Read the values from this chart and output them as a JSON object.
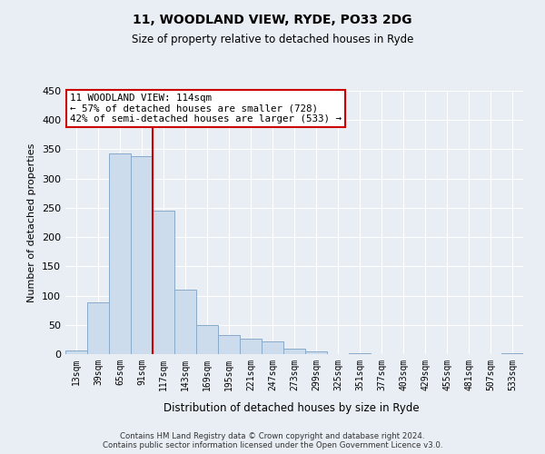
{
  "title": "11, WOODLAND VIEW, RYDE, PO33 2DG",
  "subtitle": "Size of property relative to detached houses in Ryde",
  "bar_color": "#ccdcec",
  "bar_edge_color": "#7aaan0",
  "categories": [
    "13sqm",
    "39sqm",
    "65sqm",
    "91sqm",
    "117sqm",
    "143sqm",
    "169sqm",
    "195sqm",
    "221sqm",
    "247sqm",
    "273sqm",
    "299sqm",
    "325sqm",
    "351sqm",
    "377sqm",
    "403sqm",
    "429sqm",
    "455sqm",
    "481sqm",
    "507sqm",
    "533sqm"
  ],
  "values": [
    6,
    89,
    343,
    338,
    245,
    110,
    49,
    32,
    27,
    22,
    10,
    5,
    0,
    1,
    0,
    0,
    0,
    0,
    0,
    0,
    1
  ],
  "ylim": [
    0,
    450
  ],
  "yticks": [
    0,
    50,
    100,
    150,
    200,
    250,
    300,
    350,
    400,
    450
  ],
  "ylabel": "Number of detached properties",
  "xlabel": "Distribution of detached houses by size in Ryde",
  "vline_color": "#cc0000",
  "vline_x": 3.5,
  "annotation_title": "11 WOODLAND VIEW: 114sqm",
  "annotation_line1": "← 57% of detached houses are smaller (728)",
  "annotation_line2": "42% of semi-detached houses are larger (533) →",
  "annotation_box_facecolor": "#ffffff",
  "annotation_box_edgecolor": "#cc0000",
  "footer1": "Contains HM Land Registry data © Crown copyright and database right 2024.",
  "footer2": "Contains public sector information licensed under the Open Government Licence v3.0.",
  "background_color": "#e8eef4",
  "grid_color": "#ffffff",
  "bar_edge_color_fix": "#88aac8"
}
